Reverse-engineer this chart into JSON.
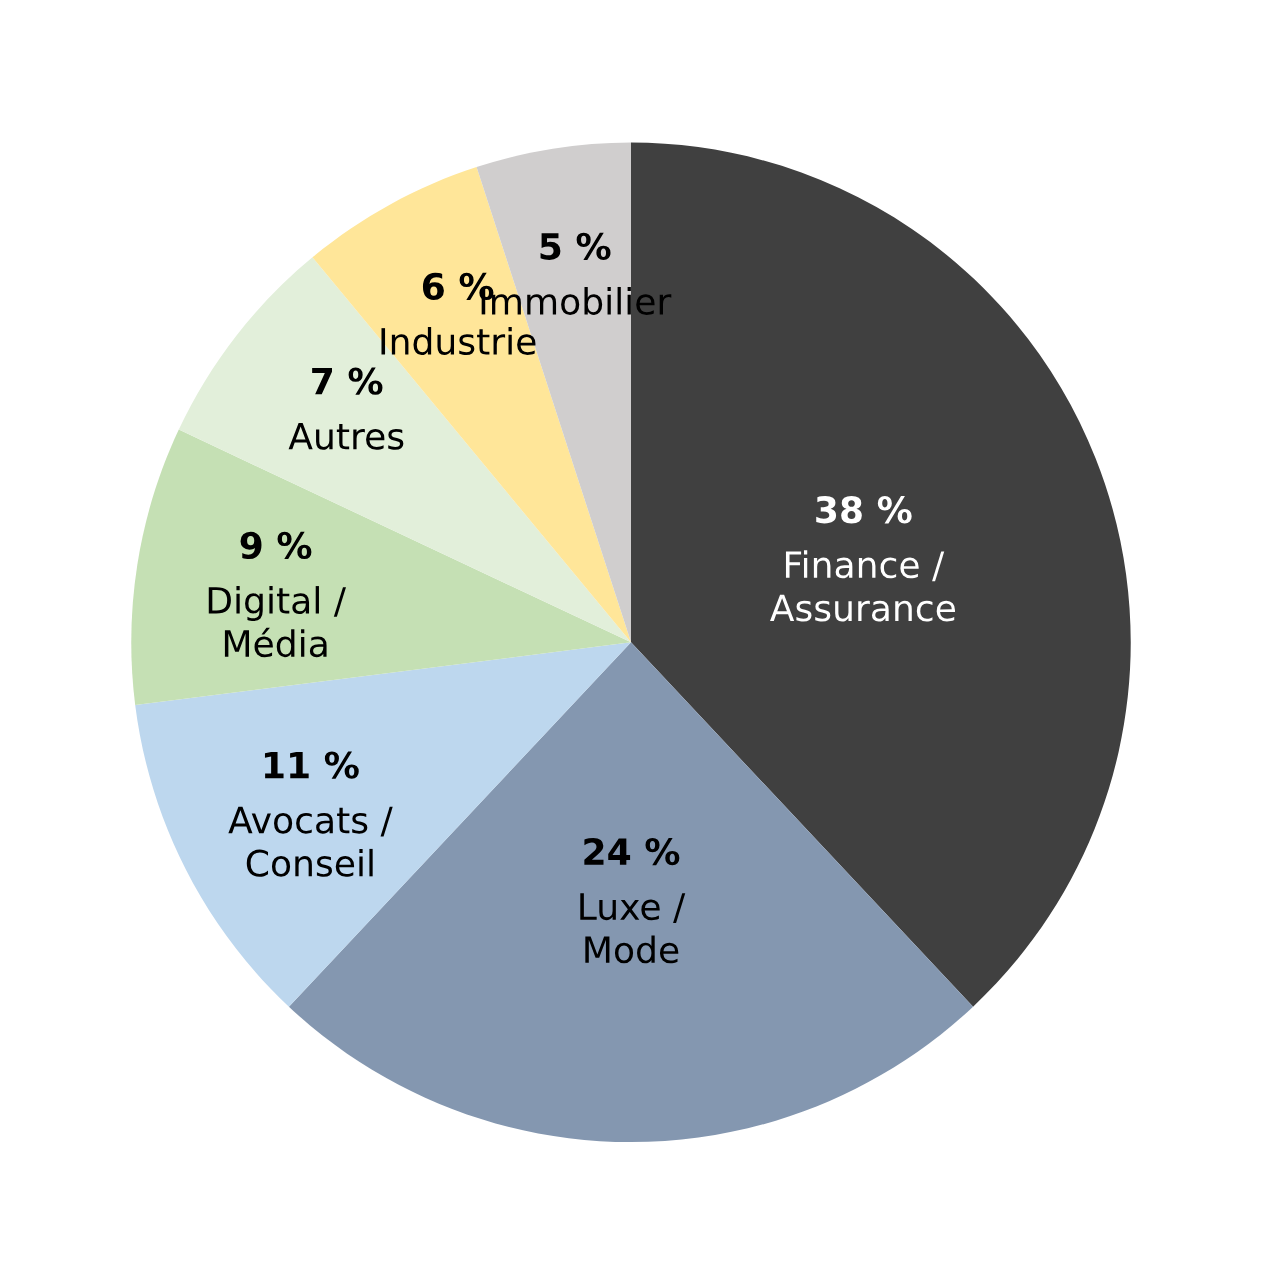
{
  "chart_data": {
    "type": "pie",
    "categories": [
      "Finance /\nAssurance",
      "Luxe /\nMode",
      "Avocats /\nConseil",
      "Digital /\nMédia",
      "Autres",
      "Industrie",
      "Immobilier"
    ],
    "values": [
      38,
      24,
      11,
      9,
      7,
      6,
      5
    ],
    "value_labels": [
      "38 %",
      "24 %",
      "11 %",
      "9 %",
      "7 %",
      "6 %",
      "5 %"
    ],
    "colors": [
      "#404040",
      "#8497b0",
      "#bdd7ee",
      "#c5e0b4",
      "#e2efda",
      "#ffe699",
      "#d0cece"
    ],
    "legend": false
  }
}
